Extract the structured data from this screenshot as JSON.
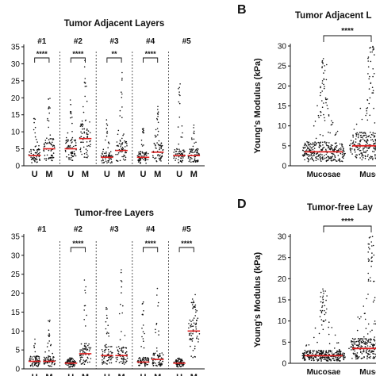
{
  "chart_data": [
    {
      "type": "scatter",
      "title": "Tumor Adjacent Layers",
      "ylabel": "",
      "ylim": [
        0,
        35
      ],
      "yticks": [
        0,
        5,
        10,
        15,
        20,
        25,
        30,
        35
      ],
      "groups": [
        "#1",
        "#2",
        "#3",
        "#4",
        "#5"
      ],
      "categories": [
        "U",
        "M"
      ],
      "medians": [
        [
          3.0,
          5.0
        ],
        [
          5.0,
          8.0
        ],
        [
          2.5,
          4.5
        ],
        [
          2.5,
          4.0
        ],
        [
          3.0,
          3.0
        ]
      ],
      "max_values": [
        [
          15,
          20
        ],
        [
          21,
          31
        ],
        [
          14,
          28
        ],
        [
          11,
          18
        ],
        [
          25,
          13
        ]
      ],
      "significance": [
        "****",
        "****",
        "**",
        "****",
        ""
      ],
      "point_color": "#111111",
      "median_color": "#e02020"
    },
    {
      "type": "scatter",
      "title": "Tumor Adjacent L",
      "ylabel": "Young's Modulus (kPa)",
      "ylim": [
        0,
        30
      ],
      "yticks": [
        0,
        5,
        10,
        15,
        20,
        25,
        30
      ],
      "categories": [
        "Mucosae",
        "Muscr"
      ],
      "medians": [
        3.5,
        5.0
      ],
      "max_values": [
        27,
        30
      ],
      "significance": "****",
      "point_color": "#111111",
      "median_color": "#e02020"
    },
    {
      "type": "scatter",
      "title": "Tumor-free Layers",
      "ylabel": "",
      "ylim": [
        0,
        35
      ],
      "yticks": [
        0,
        5,
        10,
        15,
        20,
        25,
        30,
        35
      ],
      "groups": [
        "#1",
        "#2",
        "#3",
        "#4",
        "#5"
      ],
      "categories": [
        "U",
        "M"
      ],
      "medians": [
        [
          2.0,
          2.0
        ],
        [
          1.5,
          4.0
        ],
        [
          3.5,
          3.5
        ],
        [
          1.8,
          2.5
        ],
        [
          1.5,
          10.0
        ]
      ],
      "max_values": [
        [
          8,
          13
        ],
        [
          3,
          25
        ],
        [
          18,
          28
        ],
        [
          18,
          22
        ],
        [
          3,
          20
        ]
      ],
      "significance": [
        "",
        "****",
        "",
        "****",
        "****"
      ],
      "point_color": "#111111",
      "median_color": "#e02020"
    },
    {
      "type": "scatter",
      "title": "Tumor-free Lay",
      "ylabel": "Young's Modulus (kPa)",
      "ylim": [
        0,
        30
      ],
      "yticks": [
        0,
        5,
        10,
        15,
        20,
        25,
        30
      ],
      "categories": [
        "Mucosae",
        "Muscr"
      ],
      "medians": [
        1.8,
        3.5
      ],
      "max_values": [
        18,
        30
      ],
      "significance": "****",
      "point_color": "#111111",
      "median_color": "#e02020"
    }
  ],
  "panel_letters": {
    "b": "B",
    "d": "D"
  }
}
